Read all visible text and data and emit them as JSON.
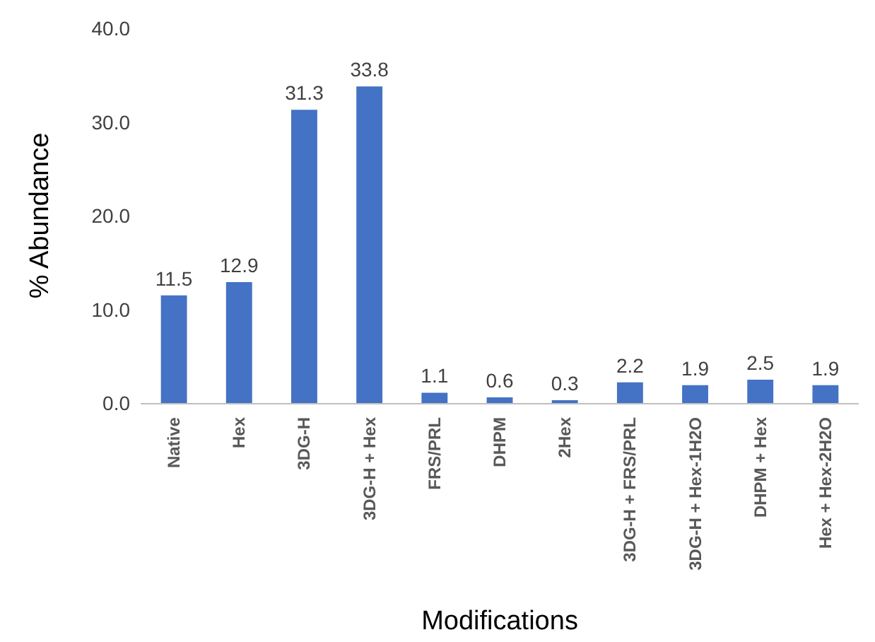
{
  "chart_data": {
    "type": "bar",
    "xlabel": "Modifications",
    "ylabel": "% Abundance",
    "categories": [
      "Native",
      "Hex",
      "3DG-H",
      "3DG-H + Hex",
      "FRS/PRL",
      "DHPM",
      "2Hex",
      "3DG-H + FRS/PRL",
      "3DG-H + Hex-1H2O",
      "DHPM + Hex",
      "Hex + Hex-2H2O"
    ],
    "values": [
      11.5,
      12.9,
      31.3,
      33.8,
      1.1,
      0.6,
      0.3,
      2.2,
      1.9,
      2.5,
      1.9
    ],
    "color": "#4472c4",
    "ylim": [
      0,
      40
    ],
    "yticks": [
      {
        "value": 0,
        "label": "0.0"
      },
      {
        "value": 10,
        "label": "10.0"
      },
      {
        "value": 20,
        "label": "20.0"
      },
      {
        "value": 30,
        "label": "30.0"
      },
      {
        "value": 40,
        "label": "40.0"
      }
    ],
    "data_labels": true
  }
}
